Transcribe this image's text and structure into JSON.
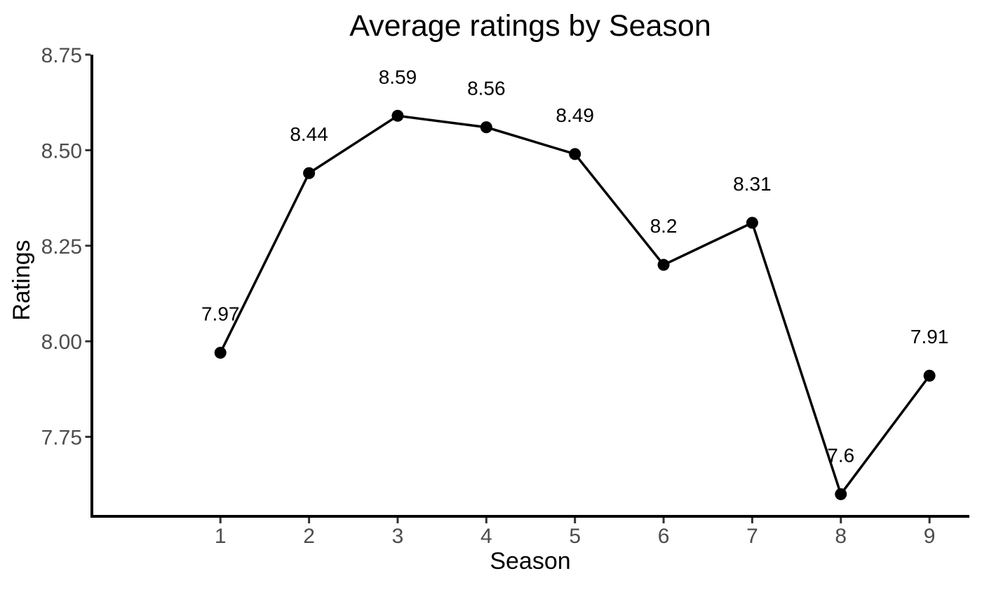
{
  "figure": {
    "background": "#ffffff"
  },
  "chart_data": {
    "type": "line",
    "title": "Average ratings by Season",
    "xlabel": "Season",
    "ylabel": "Ratings",
    "x": [
      1,
      2,
      3,
      4,
      5,
      6,
      7,
      8,
      9
    ],
    "y": [
      7.97,
      8.44,
      8.59,
      8.56,
      8.49,
      8.2,
      8.31,
      7.6,
      7.91
    ],
    "point_labels": [
      "7.97",
      "8.44",
      "8.59",
      "8.56",
      "8.49",
      "8.2",
      "8.31",
      "7.6",
      "7.91"
    ],
    "x_tick_labels": [
      "1",
      "2",
      "3",
      "4",
      "5",
      "6",
      "7",
      "8",
      "9"
    ],
    "y_tick_values": [
      7.75,
      8.0,
      8.25,
      8.5,
      8.75
    ],
    "y_tick_labels": [
      "7.75",
      "8.00",
      "8.25",
      "8.50",
      "8.75"
    ],
    "xlim": [
      -0.45,
      9.45
    ],
    "ylim": [
      7.542,
      8.75
    ],
    "grid": false,
    "legend": false,
    "colors": {
      "line": "#000000",
      "point": "#000000",
      "axis_line": "#000000",
      "tick_mark": "#333333",
      "tick_label": "#4d4d4d",
      "title": "#000000",
      "axis_title": "#000000",
      "point_label": "#000000",
      "background": "#ffffff"
    }
  }
}
